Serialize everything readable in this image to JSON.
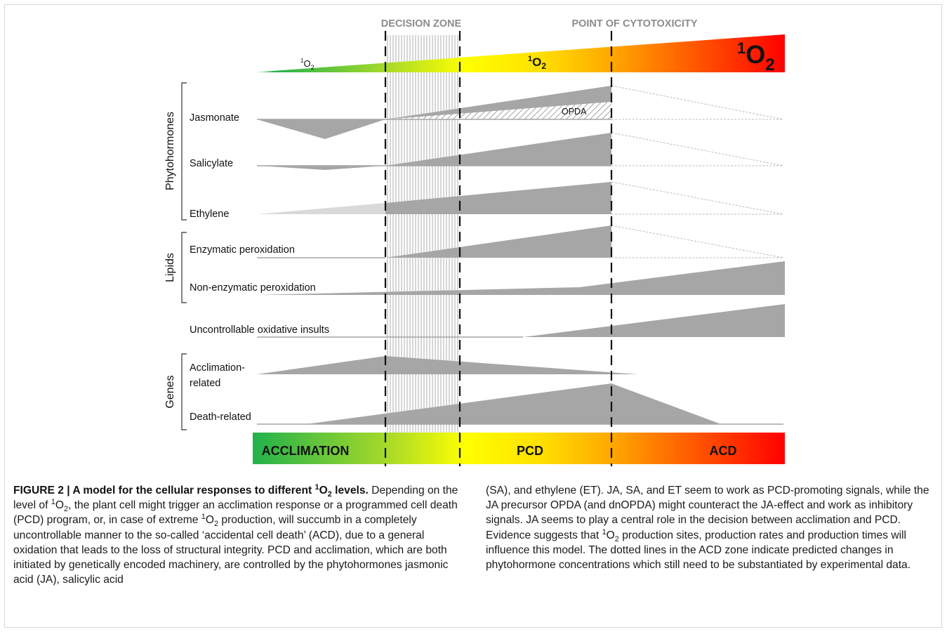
{
  "figure": {
    "zones": {
      "decision_zone": "DECISION ZONE",
      "point_of_cytotoxicity": "POINT OF CYTOTOXICITY"
    },
    "oxygen_labels": {
      "superscript": "1",
      "base": "O",
      "subscript": "2"
    },
    "groups": {
      "phytohormones": "Phytohormones",
      "lipids": "Lipids",
      "genes": "Genes"
    },
    "rows": {
      "jasmonate": "Jasmonate",
      "opda": "OPDA",
      "salicylate": "Salicylate",
      "ethylene": "Ethylene",
      "enzymatic_peroxidation": "Enzymatic peroxidation",
      "non_enzymatic_peroxidation": "Non-enzymatic peroxidation",
      "uncontrollable_oxidative_insults": "Uncontrollable oxidative insults",
      "acclimation_related_line1": "Acclimation-",
      "acclimation_related_line2": "related",
      "death_related": "Death-related"
    },
    "outcome_bar": {
      "acclimation": "ACCLIMATION",
      "pcd": "PCD",
      "acd": "ACD"
    },
    "colors": {
      "green": "#22b14c",
      "yellow": "#ffff00",
      "orange": "#ffa500",
      "red": "#ff0000",
      "response_gray": "#a6a6a6"
    }
  },
  "caption": {
    "label": "FIGURE 2 | A model for the cellular responses to different ",
    "title_end": " levels.",
    "p1": "Depending on the level of ",
    "p2": ", the plant cell might trigger an acclimation response or a programmed cell death (PCD) program, or, in case of extreme ",
    "p3": " production, will succumb in a completely uncontrollable manner to the so-called ‘accidental cell death’ (ACD), due to a general oxidation that leads to the loss of structural integrity. PCD and acclimation, which are both initiated by genetically encoded machinery, are controlled by the phytohormones jasmonic acid (JA), salicylic acid",
    "right_p1": "(SA), and ethylene (ET). JA, SA, and ET seem to work as PCD-promoting signals, while the JA precursor OPDA (and dnOPDA) might counteract the JA-effect and work as inhibitory signals. JA seems to play a central role in the decision between acclimation and PCD. Evidence suggests that ",
    "right_p2": " production sites, production rates and production times will influence this model. The dotted lines in the ACD zone indicate predicted changes in phytohormone concentrations which still need to be substantiated by experimental data."
  }
}
